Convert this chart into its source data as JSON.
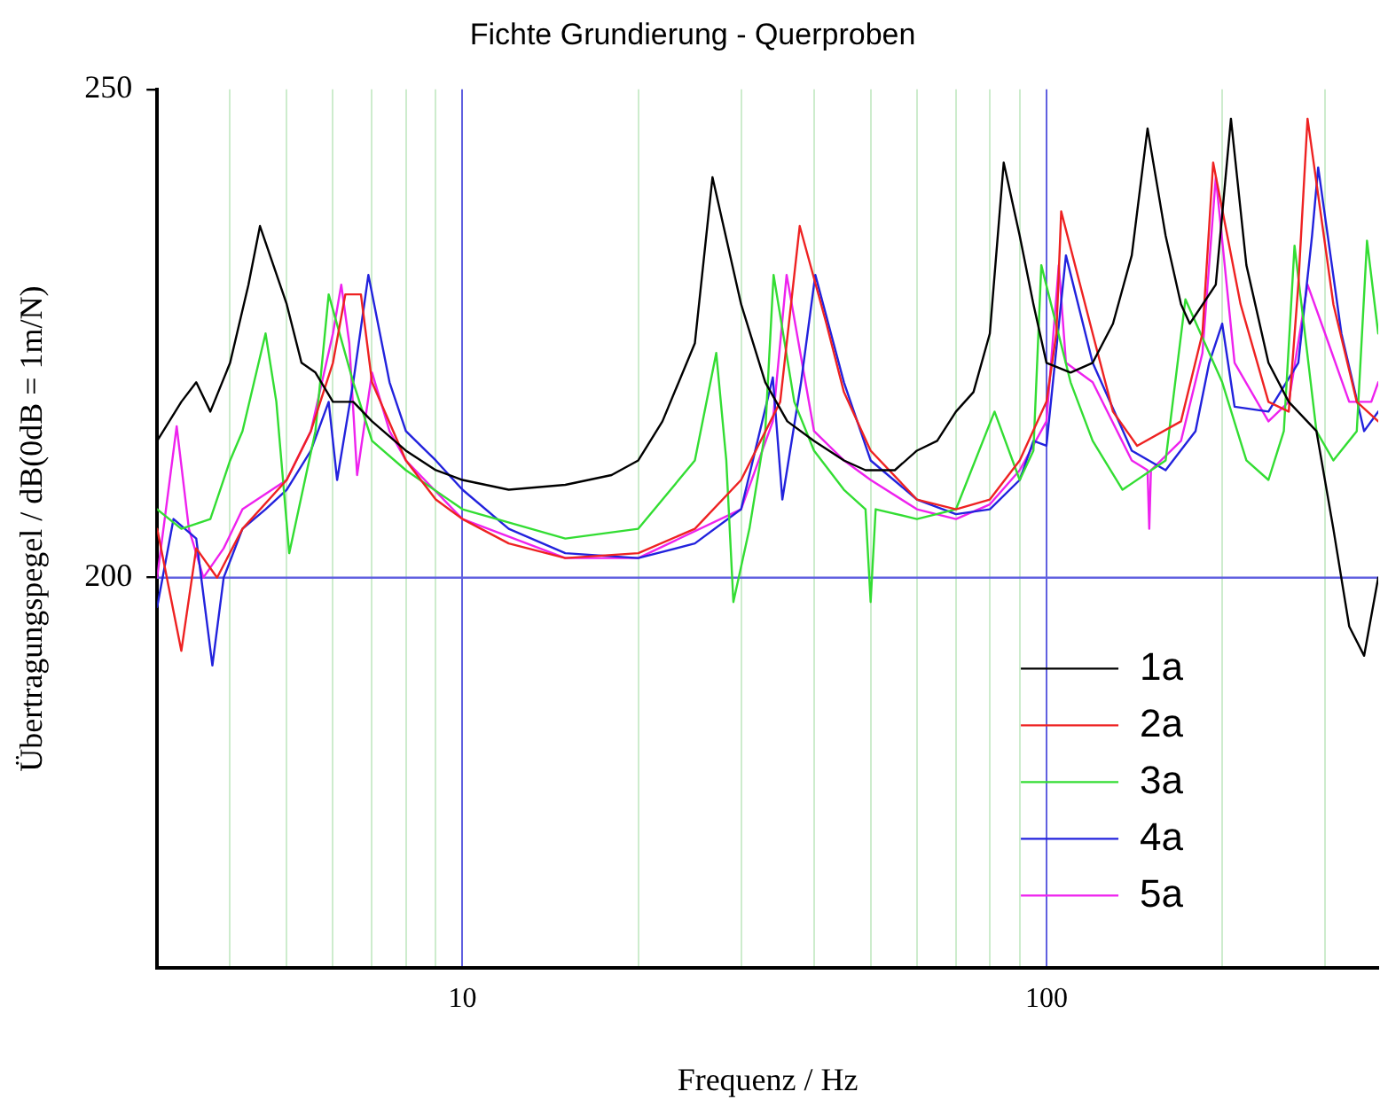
{
  "chart_data": {
    "type": "line",
    "title": "Fichte Grundierung - Querproben",
    "xlabel": "Frequenz / Hz",
    "ylabel": "Übertragungspegel / dB(0dB = 1m/N)",
    "log": "x",
    "xlim": [
      3,
      370
    ],
    "ylim": [
      160,
      250
    ],
    "xticks": [
      {
        "value": 4,
        "label": null
      },
      {
        "value": 5,
        "label": null
      },
      {
        "value": 6,
        "label": null
      },
      {
        "value": 7,
        "label": null
      },
      {
        "value": 8,
        "label": null
      },
      {
        "value": 9,
        "label": null
      },
      10,
      {
        "value": 20,
        "label": null
      },
      {
        "value": 30,
        "label": null
      },
      {
        "value": 40,
        "label": null
      },
      {
        "value": 50,
        "label": null
      },
      {
        "value": 60,
        "label": null
      },
      {
        "value": 70,
        "label": null
      },
      {
        "value": 80,
        "label": null
      },
      {
        "value": 90,
        "label": null
      },
      100,
      {
        "value": 200,
        "label": null
      },
      {
        "value": 300,
        "label": null
      }
    ],
    "yticks": [
      200,
      250
    ],
    "grid": "x",
    "ref_lines": [
      {
        "axis": "y",
        "value": 200,
        "color": "#6060e0"
      }
    ],
    "legend": "bottom right",
    "marker": "none",
    "line_style": "solid",
    "series": [
      {
        "name": "1a",
        "color": "#000000",
        "x": [
          3,
          3.3,
          3.5,
          3.7,
          4,
          4.3,
          4.5,
          5,
          5.3,
          5.6,
          6,
          6.5,
          7,
          8,
          9,
          10,
          12,
          15,
          18,
          20,
          22,
          25,
          26.8,
          30,
          33,
          36,
          40,
          45,
          49,
          55,
          60,
          65,
          70,
          75,
          80,
          84.5,
          90,
          95,
          100,
          110,
          120,
          130,
          140,
          149,
          160,
          170,
          176,
          195,
          207,
          220,
          240,
          260,
          290,
          310,
          330,
          350,
          370
        ],
        "values": [
          214,
          218,
          220,
          217,
          222,
          230,
          236,
          228,
          222,
          221,
          218,
          218,
          216,
          213,
          211,
          210,
          209,
          209.5,
          210.5,
          212,
          216,
          224,
          241,
          228,
          220,
          216,
          214,
          212,
          211,
          211,
          213,
          214,
          217,
          219,
          225,
          242.5,
          235,
          228,
          222,
          221,
          222,
          226,
          233,
          246,
          235,
          228,
          226,
          230,
          247,
          232,
          222,
          218,
          215,
          205,
          195,
          192,
          200
        ]
      },
      {
        "name": "2a",
        "color": "#ee2222",
        "x": [
          3,
          3.3,
          3.5,
          3.8,
          4.2,
          5,
          5.5,
          6,
          6.3,
          6.7,
          7,
          8,
          9,
          10,
          12,
          15,
          20,
          25,
          30,
          35,
          37.8,
          42,
          45,
          50,
          60,
          70,
          80,
          90,
          100,
          104,
          106,
          120,
          130,
          143,
          170,
          185,
          193,
          215,
          240,
          260,
          270,
          280,
          310,
          340,
          370
        ],
        "values": [
          205,
          192.5,
          203,
          200,
          205,
          210,
          215,
          222,
          229,
          229,
          220,
          212,
          208,
          206,
          203.5,
          202,
          202.5,
          205,
          210,
          218,
          236,
          226,
          219,
          213,
          208,
          207,
          208,
          212,
          218,
          225,
          237.5,
          225,
          217,
          213.5,
          216,
          225,
          242.5,
          228,
          218,
          217,
          230,
          247,
          228,
          218,
          216
        ]
      },
      {
        "name": "3a",
        "color": "#33dd33",
        "x": [
          3,
          3.3,
          3.7,
          4,
          4.2,
          4.6,
          4.8,
          5.05,
          5.6,
          5.9,
          6.5,
          7,
          8,
          10,
          15,
          20,
          25,
          27.2,
          28.3,
          29.1,
          31,
          33,
          34.1,
          37,
          40,
          45,
          49,
          50,
          51,
          60,
          70,
          81.5,
          90,
          95,
          98,
          110,
          120,
          135,
          160,
          173,
          200,
          220,
          240,
          255,
          266,
          290,
          310,
          340,
          354,
          370
        ],
        "values": [
          207,
          205,
          206,
          212,
          215,
          225,
          218,
          202.5,
          215,
          229,
          220,
          214,
          211,
          207,
          204,
          205,
          212,
          223,
          212,
          197.5,
          205,
          215,
          231,
          218,
          213,
          209,
          207,
          197.5,
          207,
          206,
          207,
          217,
          210,
          213,
          232,
          220,
          214,
          209,
          212,
          228.5,
          220,
          212,
          210,
          215,
          234,
          215,
          212,
          215,
          234.5,
          225
        ]
      },
      {
        "name": "4a",
        "color": "#2222dd",
        "x": [
          3,
          3.2,
          3.5,
          3.73,
          3.9,
          4.2,
          4.6,
          5,
          5.5,
          5.9,
          6.1,
          6.5,
          6.9,
          7.5,
          8,
          9,
          10,
          12,
          15,
          20,
          25,
          30,
          34,
          35.3,
          38,
          40.2,
          45,
          50,
          60,
          70,
          80,
          90,
          95,
          100,
          108,
          120,
          140,
          160,
          180,
          190,
          200,
          210,
          240,
          270,
          285,
          292,
          320,
          350,
          370
        ],
        "values": [
          197,
          206,
          204,
          191,
          200,
          205,
          207,
          209,
          213,
          218,
          210,
          220,
          231,
          220,
          215,
          212,
          209,
          205,
          202.5,
          202,
          203.5,
          207,
          220.5,
          208,
          220,
          231,
          220,
          212,
          208,
          206.5,
          207,
          210,
          214,
          213.5,
          233,
          222,
          213,
          211,
          215,
          222,
          226,
          217.5,
          217,
          222,
          235,
          242,
          225,
          215,
          217
        ]
      },
      {
        "name": "5a",
        "color": "#ee22ee",
        "x": [
          3,
          3.24,
          3.4,
          3.6,
          3.9,
          4.2,
          5,
          5.5,
          6,
          6.2,
          6.4,
          6.6,
          7,
          7.5,
          8,
          10,
          15,
          20,
          30,
          34,
          35.9,
          40,
          45,
          50,
          60,
          70,
          80,
          90,
          100,
          105,
          108,
          120,
          140,
          149,
          150,
          151,
          170,
          185,
          195,
          210,
          240,
          260,
          280,
          300,
          330,
          360,
          370
        ],
        "values": [
          200,
          215.5,
          205,
          200,
          203,
          207,
          210,
          215,
          225,
          230,
          224,
          210.5,
          221,
          215,
          212,
          206,
          202,
          202,
          207,
          216,
          231,
          215,
          212,
          210,
          207,
          206,
          207.5,
          211,
          216,
          232,
          222,
          220,
          212,
          211,
          205,
          211,
          214,
          223,
          241,
          222,
          216,
          218,
          230,
          225,
          218,
          218,
          220
        ]
      }
    ]
  }
}
